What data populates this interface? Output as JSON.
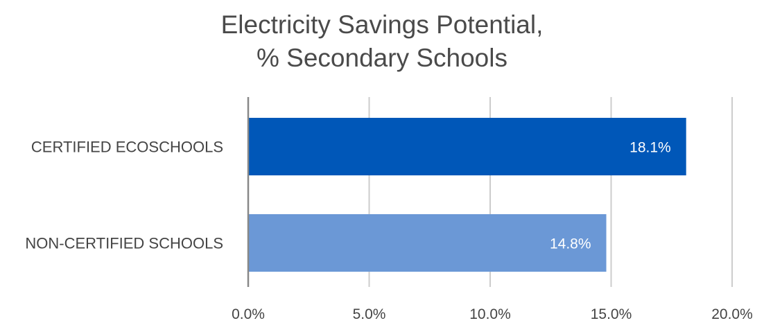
{
  "chart_data": {
    "type": "bar",
    "orientation": "horizontal",
    "title_lines": [
      "Electricity Savings Potential,",
      "% Secondary Schools"
    ],
    "categories": [
      "CERTIFIED ECOSCHOOLS",
      "NON-CERTIFIED SCHOOLS"
    ],
    "values": [
      18.1,
      14.8
    ],
    "data_labels": [
      "18.1%",
      "14.8%"
    ],
    "bar_colors": [
      "#0057b8",
      "#6b98d6"
    ],
    "xlim": [
      0,
      20
    ],
    "ticks": [
      0,
      5,
      10,
      15,
      20
    ],
    "tick_labels": [
      "0.0%",
      "5.0%",
      "10.0%",
      "15.0%",
      "20.0%"
    ],
    "grid": true,
    "xlabel": "",
    "ylabel": ""
  },
  "colors": {
    "text": "#444444",
    "grid": "#cccccc",
    "axis": "#888888"
  }
}
